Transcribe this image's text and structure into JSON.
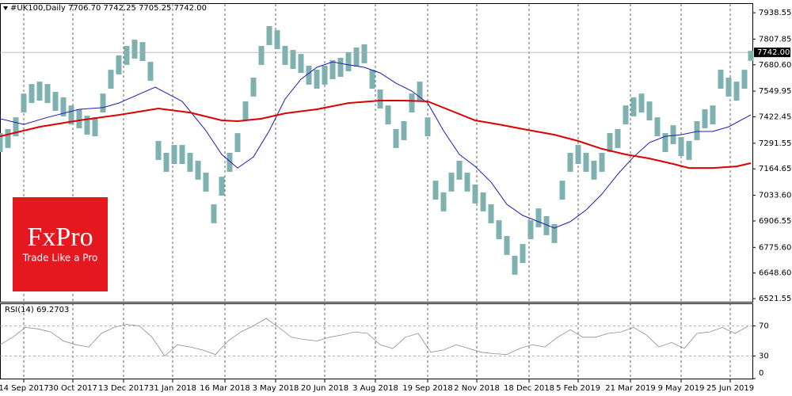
{
  "logo": {
    "name": "FxPro",
    "tagline": "Trade Like a Pro"
  },
  "chart_data": [
    {
      "type": "hilo",
      "title": "#UK100,Daily 7706.70 7742.25 7705.25 7742.00",
      "color": "#7fb1b1",
      "grid": true,
      "xlim": [
        0,
        475
      ],
      "ylim": [
        6506,
        7982
      ],
      "xticks": [
        {
          "value": 15,
          "label": "14 Sep 2017"
        },
        {
          "value": 46,
          "label": "30 Oct 2017"
        },
        {
          "value": 78,
          "label": "13 Dec 2017"
        },
        {
          "value": 109,
          "label": "31 Jan 2018"
        },
        {
          "value": 142,
          "label": "16 Mar 2018"
        },
        {
          "value": 174,
          "label": "3 May 2018"
        },
        {
          "value": 205,
          "label": "20 Jun 2018"
        },
        {
          "value": 237,
          "label": "3 Aug 2018"
        },
        {
          "value": 270,
          "label": "19 Sep 2018"
        },
        {
          "value": 301,
          "label": "2 Nov 2018"
        },
        {
          "value": 334,
          "label": "18 Dec 2018"
        },
        {
          "value": 365,
          "label": "5 Feb 2019"
        },
        {
          "value": 398,
          "label": "21 Mar 2019"
        },
        {
          "value": 430,
          "label": "9 May 2019"
        },
        {
          "value": 461,
          "label": "25 Jun 2019"
        }
      ],
      "yticks": [
        7938.55,
        7807.85,
        {
          "value": 7680.6,
          "label": "7680.60"
        },
        7549.95,
        7422.45,
        7291.55,
        7164.65,
        {
          "value": 7033.6,
          "label": "7033.60"
        },
        6906.55,
        {
          "value": 6775.6,
          "label": "6775.60"
        },
        {
          "value": 6648.6,
          "label": "6648.60"
        },
        6521.55
      ],
      "last_price": {
        "value": 7742,
        "label": "7742.00"
      },
      "x": [
        0,
        5,
        10,
        15,
        20,
        25,
        30,
        35,
        40,
        45,
        50,
        55,
        60,
        65,
        70,
        75,
        80,
        85,
        90,
        95,
        100,
        105,
        110,
        115,
        120,
        125,
        130,
        135,
        140,
        145,
        150,
        155,
        160,
        165,
        170,
        175,
        180,
        185,
        190,
        195,
        200,
        205,
        210,
        215,
        220,
        225,
        230,
        235,
        240,
        245,
        250,
        255,
        260,
        265,
        270,
        275,
        280,
        285,
        290,
        295,
        300,
        305,
        310,
        315,
        320,
        325,
        330,
        335,
        340,
        345,
        350,
        355,
        360,
        365,
        370,
        375,
        380,
        385,
        390,
        395,
        400,
        405,
        410,
        415,
        420,
        425,
        430,
        435,
        440,
        445,
        450,
        455,
        460,
        465,
        470,
        474
      ],
      "high": [
        7342,
        7362,
        7420,
        7538,
        7585,
        7597,
        7585,
        7546,
        7519,
        7479,
        7460,
        7428,
        7420,
        7538,
        7656,
        7727,
        7774,
        7805,
        7793,
        7695,
        7303,
        7244,
        7283,
        7283,
        7244,
        7205,
        7146,
        6989,
        7126,
        7244,
        7342,
        7499,
        7617,
        7774,
        7872,
        7852,
        7774,
        7754,
        7734,
        7676,
        7656,
        7676,
        7703,
        7715,
        7742,
        7766,
        7782,
        7656,
        7558,
        7479,
        7362,
        7401,
        7538,
        7597,
        7420,
        7106,
        7048,
        7146,
        7205,
        7146,
        7087,
        7048,
        6989,
        6910,
        6832,
        6734,
        6792,
        6910,
        6969,
        6930,
        6891,
        7106,
        7244,
        7283,
        7244,
        7205,
        7244,
        7342,
        7362,
        7479,
        7519,
        7538,
        7499,
        7420,
        7342,
        7381,
        7322,
        7303,
        7401,
        7460,
        7479,
        7656,
        7617,
        7597,
        7656,
        7750
      ],
      "low": [
        7248,
        7268,
        7326,
        7444,
        7491,
        7503,
        7491,
        7452,
        7425,
        7385,
        7366,
        7334,
        7326,
        7444,
        7562,
        7633,
        7680,
        7711,
        7699,
        7601,
        7209,
        7150,
        7189,
        7189,
        7150,
        7111,
        7052,
        6895,
        7032,
        7150,
        7248,
        7405,
        7523,
        7680,
        7778,
        7758,
        7680,
        7660,
        7640,
        7582,
        7562,
        7582,
        7609,
        7621,
        7648,
        7672,
        7688,
        7562,
        7464,
        7385,
        7268,
        7307,
        7444,
        7503,
        7326,
        7012,
        6954,
        7052,
        7111,
        7052,
        6993,
        6954,
        6895,
        6816,
        6738,
        6640,
        6698,
        6816,
        6875,
        6836,
        6797,
        7012,
        7150,
        7189,
        7150,
        7111,
        7150,
        7248,
        7268,
        7385,
        7425,
        7444,
        7405,
        7326,
        7248,
        7287,
        7228,
        7209,
        7307,
        7366,
        7385,
        7562,
        7523,
        7503,
        7562,
        7700
      ],
      "series": [
        {
          "color": "#1c1cb4",
          "x": [
            0,
            15,
            30,
            50,
            65,
            75,
            98,
            115,
            130,
            140,
            150,
            160,
            170,
            180,
            190,
            200,
            210,
            220,
            230,
            240,
            250,
            260,
            270,
            280,
            290,
            300,
            310,
            320,
            330,
            340,
            350,
            360,
            370,
            380,
            390,
            400,
            410,
            420,
            430,
            440,
            450,
            460,
            474
          ],
          "values": [
            7413,
            7385,
            7420,
            7460,
            7468,
            7491,
            7570,
            7499,
            7354,
            7236,
            7169,
            7224,
            7354,
            7511,
            7609,
            7668,
            7695,
            7680,
            7668,
            7640,
            7589,
            7550,
            7491,
            7354,
            7236,
            7177,
            7099,
            6989,
            6934,
            6903,
            6871,
            6903,
            6961,
            7040,
            7138,
            7224,
            7295,
            7326,
            7334,
            7350,
            7350,
            7373,
            7432
          ]
        },
        {
          "color": "#dd0000",
          "x": [
            0,
            25,
            50,
            75,
            100,
            120,
            140,
            150,
            165,
            180,
            200,
            220,
            240,
            255,
            270,
            285,
            300,
            315,
            330,
            350,
            365,
            380,
            395,
            410,
            425,
            435,
            450,
            465,
            474
          ],
          "values": [
            7326,
            7373,
            7405,
            7432,
            7464,
            7444,
            7405,
            7401,
            7413,
            7440,
            7460,
            7491,
            7503,
            7503,
            7499,
            7452,
            7405,
            7385,
            7362,
            7334,
            7303,
            7264,
            7236,
            7216,
            7189,
            7169,
            7169,
            7177,
            7193
          ]
        }
      ]
    },
    {
      "type": "line",
      "title": "RSI(14) 69.2703",
      "color": "#8c8c8c",
      "xlim": [
        0,
        475
      ],
      "ylim": [
        0,
        100
      ],
      "yticks": [
        70,
        30,
        0
      ],
      "x": [
        0,
        8,
        16,
        24,
        32,
        40,
        48,
        56,
        64,
        72,
        80,
        88,
        96,
        104,
        112,
        120,
        128,
        136,
        144,
        152,
        160,
        168,
        176,
        184,
        192,
        200,
        208,
        216,
        224,
        232,
        240,
        248,
        256,
        264,
        272,
        280,
        288,
        296,
        304,
        312,
        320,
        328,
        336,
        344,
        352,
        360,
        368,
        376,
        384,
        392,
        400,
        408,
        416,
        424,
        432,
        440,
        448,
        456,
        464,
        472
      ],
      "values": [
        45,
        55,
        68,
        66,
        62,
        50,
        45,
        42,
        60,
        68,
        72,
        70,
        55,
        30,
        45,
        42,
        38,
        32,
        50,
        62,
        70,
        80,
        68,
        55,
        52,
        50,
        55,
        58,
        62,
        60,
        45,
        40,
        55,
        60,
        35,
        38,
        45,
        40,
        35,
        33,
        32,
        40,
        45,
        42,
        55,
        65,
        55,
        55,
        60,
        62,
        68,
        58,
        42,
        48,
        40,
        60,
        62,
        68,
        60,
        69.27
      ]
    }
  ]
}
